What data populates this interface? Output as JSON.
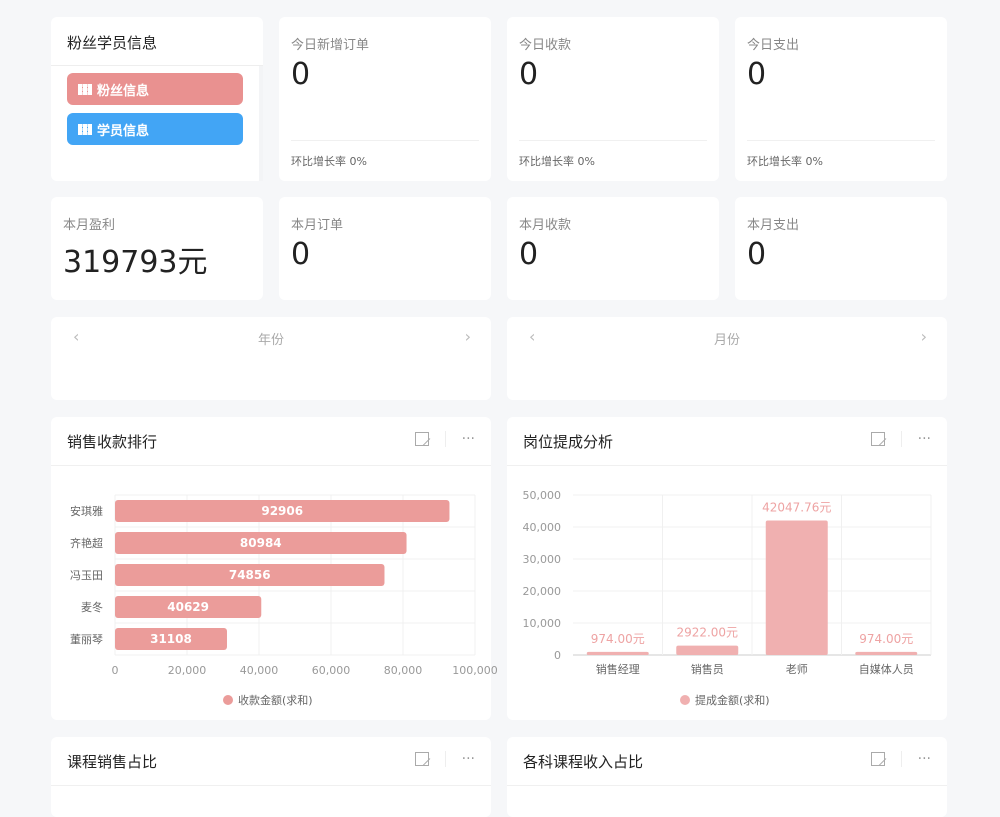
{
  "fan_card": {
    "title": "粉丝学员信息",
    "buttons": [
      {
        "label": "粉丝信息",
        "color": "#e99190"
      },
      {
        "label": "学员信息",
        "color": "#42a5f5"
      }
    ]
  },
  "today": [
    {
      "label": "今日新增订单",
      "value": "0",
      "rate": "环比增长率 0%"
    },
    {
      "label": "今日收款",
      "value": "0",
      "rate": "环比增长率 0%"
    },
    {
      "label": "今日支出",
      "value": "0",
      "rate": "环比增长率 0%"
    }
  ],
  "month": [
    {
      "label": "本月盈利",
      "value": "319793元"
    },
    {
      "label": "本月订单",
      "value": "0"
    },
    {
      "label": "本月收款",
      "value": "0"
    },
    {
      "label": "本月支出",
      "value": "0"
    }
  ],
  "pickers": [
    {
      "label": "年份"
    },
    {
      "label": "月份"
    }
  ],
  "panels": [
    {
      "title": "销售收款排行"
    },
    {
      "title": "岗位提成分析"
    },
    {
      "title": "课程销售占比"
    },
    {
      "title": "各科课程收入占比"
    }
  ],
  "chart_data": [
    {
      "type": "bar",
      "orientation": "horizontal",
      "categories": [
        "安琪雅",
        "齐艳超",
        "冯玉田",
        "麦冬",
        "董丽琴"
      ],
      "series": [
        {
          "name": "收款金额(求和)",
          "values": [
            92906,
            80984,
            74856,
            40629,
            31108
          ]
        }
      ],
      "data_labels": [
        "92906",
        "80984",
        "74856",
        "40629",
        "31108"
      ],
      "xlim": [
        0,
        100000
      ],
      "xticks": [
        "0",
        "20,000",
        "40,000",
        "60,000",
        "80,000",
        "100,000"
      ],
      "grid": true,
      "legend": "bottom",
      "color": "#eb9c9a"
    },
    {
      "type": "bar",
      "categories": [
        "销售经理",
        "销售员",
        "老师",
        "自媒体人员"
      ],
      "series": [
        {
          "name": "提成金额(求和)",
          "values": [
            974.0,
            2922.0,
            42047.76,
            974.0
          ]
        }
      ],
      "data_labels": [
        "974.00元",
        "2922.00元",
        "42047.76元",
        "974.00元"
      ],
      "ylim": [
        0,
        50000
      ],
      "yticks": [
        "0",
        "10,000",
        "20,000",
        "30,000",
        "40,000",
        "50,000"
      ],
      "grid": true,
      "legend": "bottom",
      "color": "#f0b0b0"
    }
  ]
}
